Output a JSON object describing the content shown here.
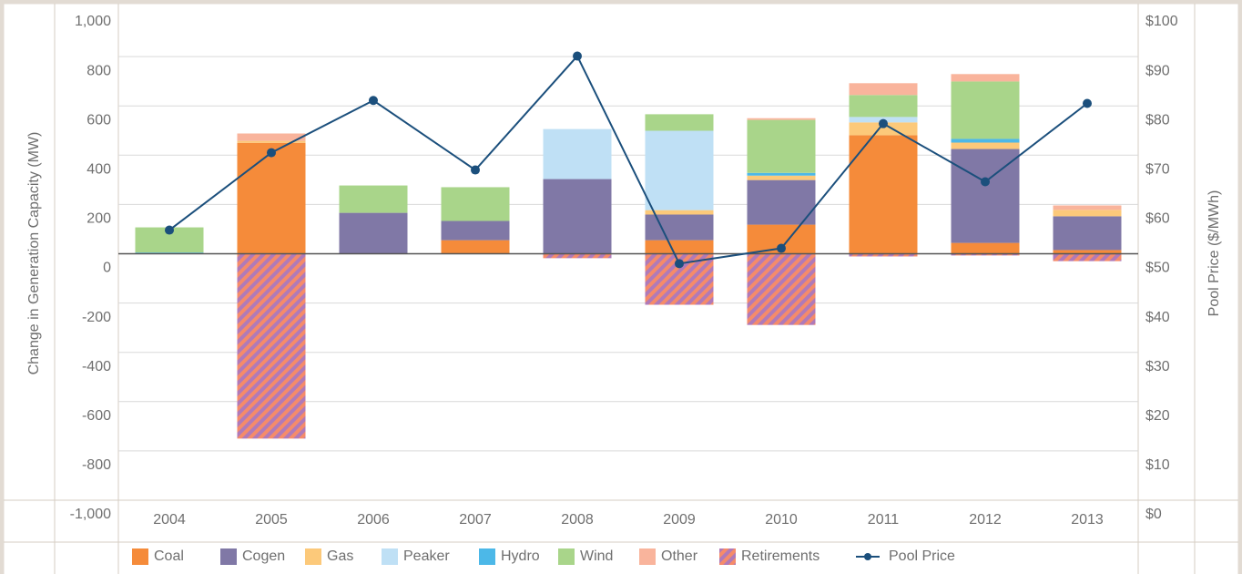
{
  "chart_data": {
    "type": "bar",
    "y_label": "Change in Generation Capacity (MW)",
    "y2_label": "Pool Price ($/MWh)",
    "categories": [
      "2004",
      "2005",
      "2006",
      "2007",
      "2008",
      "2009",
      "2010",
      "2011",
      "2012",
      "2013"
    ],
    "ylim": [
      -1000,
      1000
    ],
    "yticks": [
      {
        "value": 1000,
        "label": "1,000"
      },
      800,
      600,
      400,
      200,
      0,
      -200,
      -400,
      -600,
      -800,
      {
        "value": -1000,
        "label": "-1,000"
      }
    ],
    "y2lim": [
      0,
      100
    ],
    "y2ticks": [
      {
        "value": 100,
        "label": "$100"
      },
      {
        "value": 90,
        "label": "$90"
      },
      {
        "value": 80,
        "label": "$80"
      },
      {
        "value": 70,
        "label": "$70"
      },
      {
        "value": 60,
        "label": "$60"
      },
      {
        "value": 50,
        "label": "$50"
      },
      {
        "value": 40,
        "label": "$40"
      },
      {
        "value": 30,
        "label": "$30"
      },
      {
        "value": 20,
        "label": "$20"
      },
      {
        "value": 10,
        "label": "$10"
      },
      {
        "value": 0,
        "label": "$0"
      }
    ],
    "grid": true,
    "series": [
      {
        "name": "Coal",
        "color": "#f58b3a",
        "values": [
          0,
          450,
          0,
          55,
          0,
          55,
          118,
          481,
          44,
          15
        ]
      },
      {
        "name": "Cogen",
        "color": "#8078a6",
        "values": [
          0,
          0,
          166,
          78,
          303,
          104,
          181,
          0,
          381,
          137
        ]
      },
      {
        "name": "Gas",
        "color": "#fcc97a",
        "values": [
          0,
          8,
          0,
          0,
          0,
          18,
          18,
          52,
          26,
          26
        ]
      },
      {
        "name": "Peaker",
        "color": "#bfe0f5",
        "values": [
          0,
          0,
          0,
          0,
          203,
          322,
          0,
          22,
          0,
          0
        ]
      },
      {
        "name": "Hydro",
        "color": "#4cb8e8",
        "values": [
          5,
          0,
          0,
          0,
          0,
          0,
          11,
          0,
          15,
          0
        ]
      },
      {
        "name": "Wind",
        "color": "#a9d58a",
        "values": [
          102,
          0,
          111,
          137,
          0,
          67,
          215,
          89,
          233,
          0
        ]
      },
      {
        "name": "Other",
        "color": "#f9b49c",
        "values": [
          0,
          30,
          0,
          0,
          0,
          0,
          7,
          48,
          30,
          18
        ]
      },
      {
        "name": "Retirements",
        "color": "hatch",
        "values": [
          0,
          -750,
          0,
          0,
          -18,
          -207,
          -289,
          -11,
          -7,
          -30
        ]
      },
      {
        "name": "Pool Price",
        "type": "line",
        "axis": "y2",
        "color": "#1b4f7c",
        "values": [
          54.8,
          70.5,
          81.1,
          67.0,
          90.1,
          48.0,
          51.1,
          76.4,
          64.6,
          80.5
        ]
      }
    ]
  }
}
